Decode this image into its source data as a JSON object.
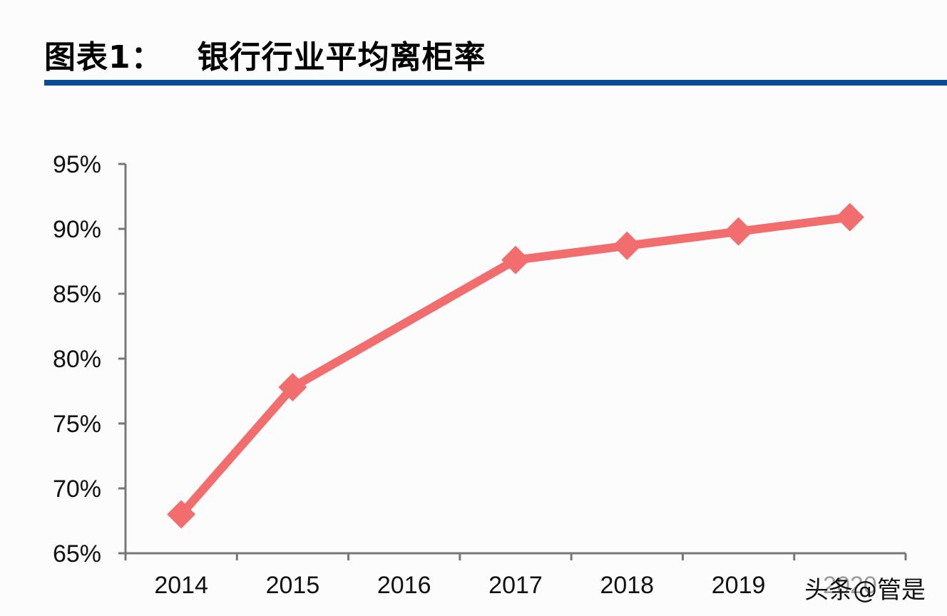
{
  "header": {
    "label": "图表1：",
    "title": "银行行业平均离柜率"
  },
  "colors": {
    "line": "#f26d6d",
    "rule": "#0d4a96",
    "axis": "#777777"
  },
  "watermark": "头条@管是",
  "chart_data": {
    "type": "line",
    "title": "银行行业平均离柜率",
    "categories": [
      "2014",
      "2015",
      "2016",
      "2017",
      "2018",
      "2019",
      "2020"
    ],
    "series": [
      {
        "name": "银行行业平均离柜率",
        "values": [
          68.0,
          77.8,
          null,
          87.6,
          88.7,
          89.8,
          90.9
        ],
        "marker": "diamond"
      }
    ],
    "yticks": [
      "65%",
      "70%",
      "75%",
      "80%",
      "85%",
      "90%",
      "95%"
    ],
    "ylim": [
      65,
      95
    ],
    "xlabel": "",
    "ylabel": "",
    "grid": false,
    "legend": "none"
  }
}
